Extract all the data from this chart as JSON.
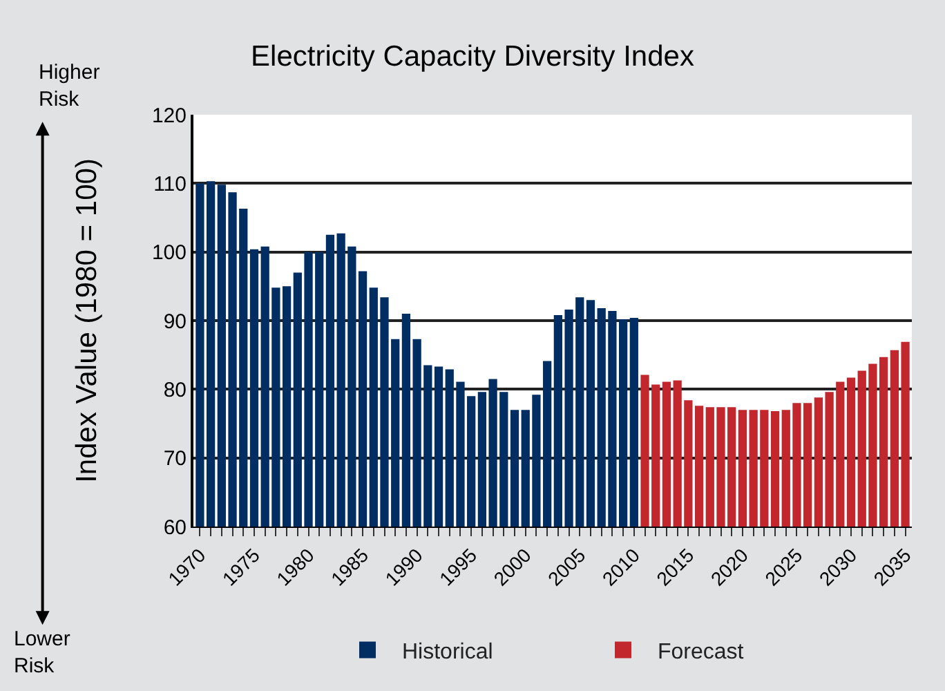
{
  "chart_data": {
    "type": "bar",
    "title": "Electricity Capacity Diversity Index",
    "ylabel": "Index Value (1980 = 100)",
    "annotations": [
      "Higher Risk",
      "Lower Risk"
    ],
    "series": [
      {
        "name": "Historical",
        "color": "#002d62",
        "x": [
          1970,
          1971,
          1972,
          1973,
          1974,
          1975,
          1976,
          1977,
          1978,
          1979,
          1980,
          1981,
          1982,
          1983,
          1984,
          1985,
          1986,
          1987,
          1988,
          1989,
          1990,
          1991,
          1992,
          1993,
          1994,
          1995,
          1996,
          1997,
          1998,
          1999,
          2000,
          2001,
          2002,
          2003,
          2004,
          2005,
          2006,
          2007,
          2008,
          2009,
          2010
        ],
        "values": [
          110.0,
          110.3,
          109.8,
          108.7,
          106.3,
          100.4,
          100.8,
          94.8,
          95.0,
          97.0,
          100.0,
          100.0,
          102.5,
          102.7,
          100.8,
          97.2,
          94.8,
          93.4,
          87.3,
          91.0,
          87.3,
          83.5,
          83.3,
          82.9,
          81.1,
          79.0,
          79.6,
          81.5,
          79.6,
          77.0,
          77.0,
          79.2,
          84.1,
          90.8,
          91.6,
          93.4,
          93.0,
          91.8,
          91.4,
          90.2,
          90.4
        ]
      },
      {
        "name": "Forecast",
        "color": "#c1272d",
        "x": [
          2011,
          2012,
          2013,
          2014,
          2015,
          2016,
          2017,
          2018,
          2019,
          2020,
          2021,
          2022,
          2023,
          2024,
          2025,
          2026,
          2027,
          2028,
          2029,
          2030,
          2031,
          2032,
          2033,
          2034,
          2035
        ],
        "values": [
          82.1,
          80.7,
          81.1,
          81.3,
          78.4,
          77.6,
          77.4,
          77.4,
          77.4,
          77.0,
          77.0,
          77.0,
          76.8,
          77.0,
          78.0,
          78.0,
          78.8,
          79.6,
          81.1,
          81.7,
          82.7,
          83.7,
          84.7,
          85.7,
          86.9
        ]
      }
    ],
    "xlim": [
      1969.4,
      2035.6
    ],
    "xticks": [
      1970,
      {
        "value": 1971,
        "label": null
      },
      {
        "value": 1972,
        "label": null
      },
      {
        "value": 1973,
        "label": null
      },
      {
        "value": 1974,
        "label": null
      },
      1975,
      {
        "value": 1976,
        "label": null
      },
      {
        "value": 1977,
        "label": null
      },
      {
        "value": 1978,
        "label": null
      },
      {
        "value": 1979,
        "label": null
      },
      1980,
      {
        "value": 1981,
        "label": null
      },
      {
        "value": 1982,
        "label": null
      },
      {
        "value": 1983,
        "label": null
      },
      {
        "value": 1984,
        "label": null
      },
      1985,
      {
        "value": 1986,
        "label": null
      },
      {
        "value": 1987,
        "label": null
      },
      {
        "value": 1988,
        "label": null
      },
      {
        "value": 1989,
        "label": null
      },
      1990,
      {
        "value": 1991,
        "label": null
      },
      {
        "value": 1992,
        "label": null
      },
      {
        "value": 1993,
        "label": null
      },
      {
        "value": 1994,
        "label": null
      },
      1995,
      {
        "value": 1996,
        "label": null
      },
      {
        "value": 1997,
        "label": null
      },
      {
        "value": 1998,
        "label": null
      },
      {
        "value": 1999,
        "label": null
      },
      2000,
      {
        "value": 2001,
        "label": null
      },
      {
        "value": 2002,
        "label": null
      },
      {
        "value": 2003,
        "label": null
      },
      {
        "value": 2004,
        "label": null
      },
      2005,
      {
        "value": 2006,
        "label": null
      },
      {
        "value": 2007,
        "label": null
      },
      {
        "value": 2008,
        "label": null
      },
      {
        "value": 2009,
        "label": null
      },
      2010,
      {
        "value": 2011,
        "label": null
      },
      {
        "value": 2012,
        "label": null
      },
      {
        "value": 2013,
        "label": null
      },
      {
        "value": 2014,
        "label": null
      },
      2015,
      {
        "value": 2016,
        "label": null
      },
      {
        "value": 2017,
        "label": null
      },
      {
        "value": 2018,
        "label": null
      },
      {
        "value": 2019,
        "label": null
      },
      2020,
      {
        "value": 2021,
        "label": null
      },
      {
        "value": 2022,
        "label": null
      },
      {
        "value": 2023,
        "label": null
      },
      {
        "value": 2024,
        "label": null
      },
      2025,
      {
        "value": 2026,
        "label": null
      },
      {
        "value": 2027,
        "label": null
      },
      {
        "value": 2028,
        "label": null
      },
      {
        "value": 2029,
        "label": null
      },
      2030,
      {
        "value": 2031,
        "label": null
      },
      {
        "value": 2032,
        "label": null
      },
      {
        "value": 2033,
        "label": null
      },
      {
        "value": 2034,
        "label": null
      },
      2035
    ],
    "ylim": [
      60,
      120
    ],
    "yticks": [
      60,
      70,
      80,
      90,
      100,
      110,
      120
    ],
    "grid": "y",
    "legend": "bottom"
  }
}
